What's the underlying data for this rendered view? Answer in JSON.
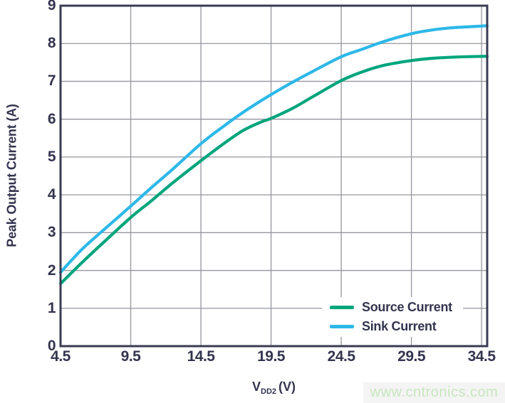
{
  "chart_data": {
    "type": "line",
    "title": "",
    "xlabel": "VDD2 (V)",
    "ylabel": "Peak Output Current (A)",
    "xlim": [
      4.5,
      34.9
    ],
    "ylim": [
      0,
      9
    ],
    "grid": true,
    "legend_position": "lower right",
    "x_ticks": [
      "4.5",
      "9.5",
      "14.5",
      "19.5",
      "24.5",
      "29.5",
      "34.5"
    ],
    "y_ticks": [
      "0",
      "1",
      "2",
      "3",
      "4",
      "5",
      "6",
      "7",
      "8",
      "9"
    ],
    "series": [
      {
        "name": "Source Current",
        "color": "#00a57c",
        "x": [
          4.5,
          6.0,
          7.5,
          9.5,
          11.0,
          12.5,
          14.5,
          16.0,
          17.5,
          18.75,
          19.5,
          21.0,
          22.5,
          24.5,
          26.0,
          27.5,
          29.5,
          31.0,
          32.5,
          34.5,
          34.9
        ],
        "y": [
          1.65,
          2.2,
          2.72,
          3.4,
          3.85,
          4.32,
          4.9,
          5.32,
          5.7,
          5.92,
          6.02,
          6.28,
          6.6,
          7.02,
          7.25,
          7.42,
          7.55,
          7.61,
          7.64,
          7.66,
          7.66
        ]
      },
      {
        "name": "Sink Current",
        "color": "#2db8e8",
        "x": [
          4.5,
          6.0,
          7.5,
          9.5,
          11.0,
          12.5,
          14.5,
          16.0,
          17.5,
          19.5,
          21.0,
          22.5,
          24.5,
          26.0,
          27.5,
          29.5,
          31.0,
          32.5,
          34.5,
          34.9
        ],
        "y": [
          1.95,
          2.55,
          3.05,
          3.7,
          4.2,
          4.68,
          5.35,
          5.78,
          6.18,
          6.65,
          6.97,
          7.27,
          7.65,
          7.85,
          8.05,
          8.26,
          8.36,
          8.42,
          8.46,
          8.47
        ]
      }
    ]
  },
  "axis": {
    "y_title": "Peak Output Current (A)",
    "x_title_main": "V",
    "x_title_sub": "DD2",
    "x_title_unit": "(V)"
  },
  "legend": {
    "items": [
      {
        "label": "Source Current",
        "color": "#00a57c"
      },
      {
        "label": "Sink Current",
        "color": "#2db8e8"
      }
    ]
  },
  "watermark": {
    "text": "www.cntronics.com",
    "color": "#c7e6bf",
    "bg": "#f4f4f4"
  },
  "colors": {
    "frame": "#3a3b53",
    "grid": "#95969e",
    "text": "#33344e",
    "background": "#ffffff"
  }
}
